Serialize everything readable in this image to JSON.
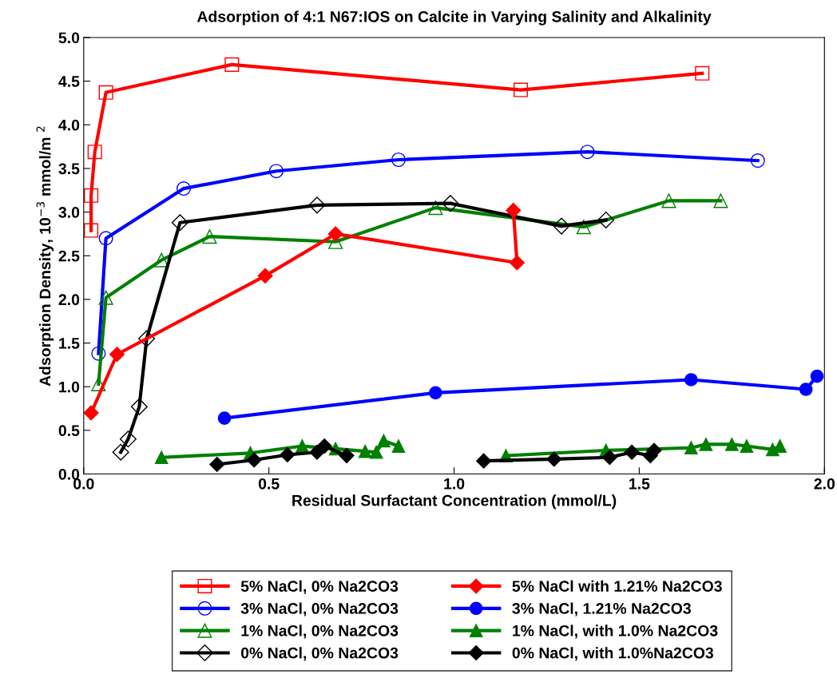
{
  "chart_data": {
    "type": "line",
    "title": "Adsorption of 4:1 N67:IOS on Calcite in Varying Salinity and Alkalinity",
    "xlabel": "Residual Surfactant Concentration (mmol/L)",
    "ylabel": "Adsorption Density, 10$^{−3}$ mmol/m $^{2}$",
    "xlim": [
      0.0,
      2.0
    ],
    "xticks": [
      {
        "value": 0,
        "label": "0.0"
      },
      0.5,
      {
        "value": 1,
        "label": "1.0"
      },
      1.5,
      {
        "value": 2,
        "label": "2.0"
      }
    ],
    "ylim": [
      0.0,
      5.0
    ],
    "yticks": [
      {
        "value": 0,
        "label": "0.0"
      },
      0.5,
      {
        "value": 1,
        "label": "1.0"
      },
      1.5,
      {
        "value": 2,
        "label": "2.0"
      },
      2.5,
      {
        "value": 3,
        "label": "3.0"
      },
      3.5,
      {
        "value": 4,
        "label": "4.0"
      },
      4.5,
      {
        "value": 5,
        "label": "5.0"
      }
    ],
    "grid": false,
    "legend": "bottom",
    "line_style": "solid",
    "series": [
      {
        "name": "5% NaCl, 0% Na2CO3",
        "color": "#ff0000",
        "marker": "square",
        "x": [
          0.02,
          0.02,
          0.03,
          0.06,
          0.4,
          1.18,
          1.67
        ],
        "values": [
          2.79,
          3.19,
          3.69,
          4.37,
          4.69,
          4.4,
          4.59
        ]
      },
      {
        "name": "3% NaCl, 0% Na2CO3",
        "color": "#0000ff",
        "marker": "circle",
        "x": [
          0.04,
          0.06,
          0.27,
          0.52,
          0.85,
          1.36,
          1.82
        ],
        "values": [
          1.38,
          2.7,
          3.27,
          3.47,
          3.6,
          3.69,
          3.59
        ]
      },
      {
        "name": "1% NaCl, 0% Na2CO3",
        "color": "#008000",
        "marker": "triangle",
        "x": [
          0.04,
          0.06,
          0.21,
          0.34,
          0.68,
          0.95,
          1.35,
          1.58,
          1.72
        ],
        "values": [
          1.03,
          2.02,
          2.45,
          2.72,
          2.66,
          3.05,
          2.83,
          3.13,
          3.13
        ]
      },
      {
        "name": "0% NaCl, 0% Na2CO3",
        "color": "#000000",
        "marker": "diamond",
        "x": [
          0.1,
          0.12,
          0.15,
          0.17,
          0.26,
          0.63,
          0.99,
          1.29,
          1.41
        ],
        "values": [
          0.25,
          0.4,
          0.77,
          1.55,
          2.88,
          3.08,
          3.1,
          2.84,
          2.91
        ]
      },
      {
        "name": "5% NaCl with 1.21% Na2CO3",
        "color": "#ff0000",
        "marker": "diamond",
        "x": [
          0.02,
          0.09,
          0.49,
          0.68,
          1.17,
          1.16
        ],
        "values": [
          0.7,
          1.37,
          2.27,
          2.75,
          2.42,
          3.02
        ]
      },
      {
        "name": "3% NaCl, 1.21% Na2CO3",
        "color": "#0000ff",
        "marker": "circle",
        "x": [
          0.38,
          0.95,
          1.64,
          1.95,
          1.98
        ],
        "values": [
          0.64,
          0.93,
          1.08,
          0.97,
          1.12
        ]
      },
      {
        "name": "1% NaCl, with 1.0% Na2CO3",
        "color": "#008000",
        "marker": "triangle",
        "x": [
          0.21,
          0.45,
          0.59,
          0.68,
          0.76,
          0.79,
          0.81,
          0.85,
          null,
          1.14,
          1.41,
          1.64,
          1.68,
          1.75,
          1.79,
          1.86,
          1.88
        ],
        "values": [
          0.19,
          0.24,
          0.32,
          0.29,
          0.26,
          0.25,
          0.38,
          0.32,
          null,
          0.21,
          0.27,
          0.3,
          0.34,
          0.34,
          0.32,
          0.28,
          0.32
        ]
      },
      {
        "name": "0% NaCl, with 1.0%Na2CO3",
        "color": "#000000",
        "marker": "diamond",
        "x": [
          0.36,
          0.46,
          0.55,
          0.63,
          0.65,
          0.71,
          null,
          1.08,
          1.27,
          1.42,
          1.48,
          1.53,
          1.54
        ],
        "values": [
          0.11,
          0.16,
          0.22,
          0.25,
          0.32,
          0.21,
          null,
          0.15,
          0.17,
          0.19,
          0.25,
          0.21,
          0.27
        ]
      }
    ]
  }
}
